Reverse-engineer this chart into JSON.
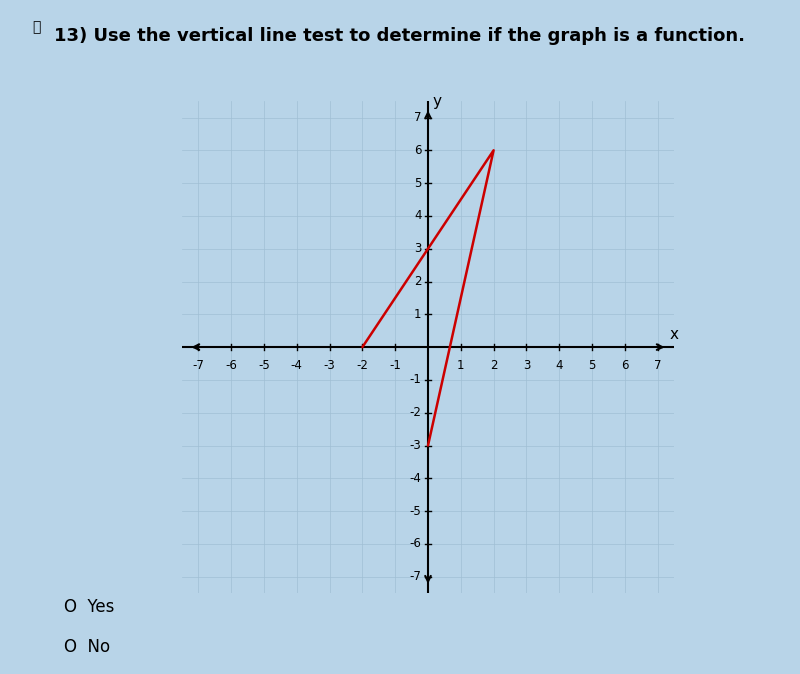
{
  "title": "13) Use the vertical line test to determine if the graph is a function.",
  "background_color": "#b8d4e8",
  "graph_bg_color": "#dce9f5",
  "grid_color": "#a0bfd4",
  "axis_range": [
    -7,
    7
  ],
  "line_segments": [
    {
      "x": [
        -2,
        0,
        2,
        0
      ],
      "y": [
        0,
        3,
        6,
        -3
      ]
    },
    {
      "x": [
        0,
        2
      ],
      "y": [
        3,
        6
      ]
    },
    {
      "x": [
        2,
        0
      ],
      "y": [
        6,
        -3
      ]
    }
  ],
  "red_color": "#cc0000",
  "line_width": 1.8,
  "answer_options": [
    "Yes",
    "No"
  ],
  "xlabel": "x",
  "ylabel": "y"
}
